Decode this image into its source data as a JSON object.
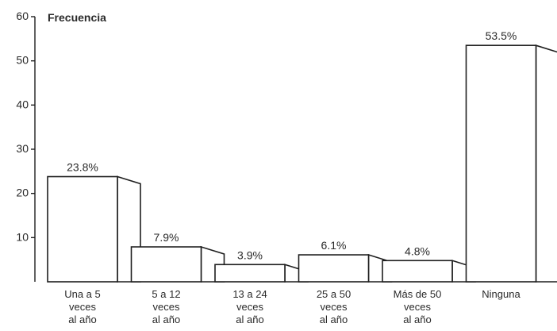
{
  "chart_data": {
    "type": "bar",
    "ylabel": "Frecuencia",
    "ylim": [
      0,
      60
    ],
    "yticks": [
      "10",
      "20",
      "30",
      "40",
      "50",
      "60"
    ],
    "categories": [
      [
        "Una a 5",
        "veces",
        "al año"
      ],
      [
        "5 a 12",
        "veces",
        "al año"
      ],
      [
        "13 a 24",
        "veces",
        "al año"
      ],
      [
        "25 a 50",
        "veces",
        "al año"
      ],
      [
        "Más de 50",
        "veces",
        "al año"
      ],
      [
        "Ninguna"
      ]
    ],
    "values": [
      23.8,
      7.9,
      3.9,
      6.1,
      4.8,
      53.5
    ],
    "data_labels": [
      "23.8%",
      "7.9%",
      "3.9%",
      "6.1%",
      "4.8%",
      "53.5%"
    ],
    "grid": false,
    "style": "3d-outline"
  }
}
